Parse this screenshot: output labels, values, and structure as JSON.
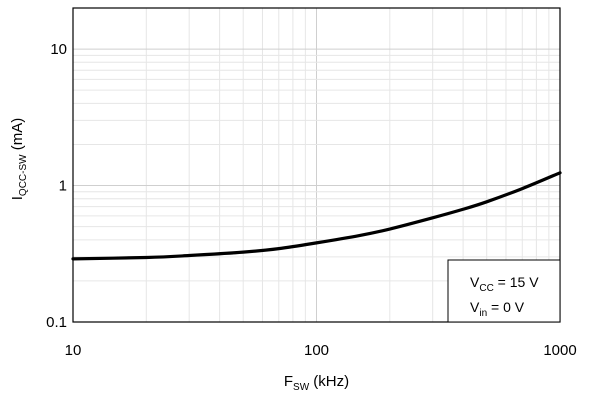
{
  "chart_data": {
    "type": "line",
    "x_scale": "log",
    "y_scale": "log",
    "xlim": [
      10,
      1000
    ],
    "ylim": [
      0.1,
      20
    ],
    "x_ticks": [
      "10",
      "100",
      "1000"
    ],
    "y_ticks": [
      "0.1",
      "1",
      "10"
    ],
    "xlabel": {
      "main": "F",
      "sub": "SW",
      "rest": " (kHz)"
    },
    "ylabel": {
      "main": "I",
      "sub": "QCC-SW",
      "rest": " (mA)"
    },
    "grid": true,
    "legend": "none",
    "annotation": {
      "line1": {
        "main": "V",
        "sub": "CC",
        "rest": " = 15 V"
      },
      "line2": {
        "main": "V",
        "sub": "in",
        "rest": " = 0 V"
      },
      "placement": "bottom-right"
    },
    "series": [
      {
        "color": "#000000",
        "x": [
          10,
          20,
          30,
          50,
          70,
          100,
          150,
          200,
          300,
          400,
          500,
          700,
          1000
        ],
        "y": [
          0.29,
          0.297,
          0.307,
          0.325,
          0.345,
          0.38,
          0.43,
          0.48,
          0.58,
          0.67,
          0.76,
          0.95,
          1.24
        ]
      }
    ]
  }
}
